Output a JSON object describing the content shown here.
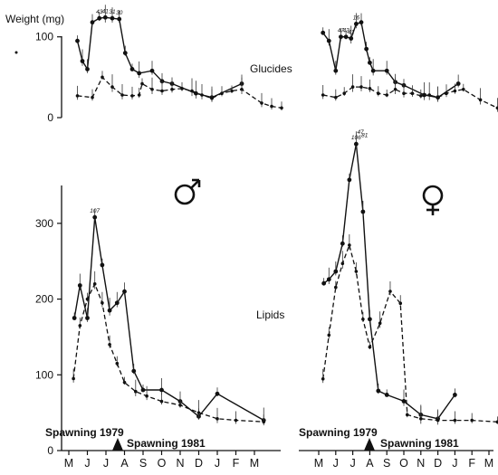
{
  "figure": {
    "ylabel": "Weight (mg)",
    "top_row_label": "Glucides",
    "bottom_row_label": "Lipids",
    "male_symbol": "♂",
    "female_symbol": "♀",
    "spawning_1979_label": "Spawning 1979",
    "spawning_1981_label": "Spawning 1981"
  },
  "chart_data": [
    {
      "type": "line",
      "panel": "male-glucides",
      "months": [
        "M",
        "J",
        "J",
        "A",
        "S",
        "O",
        "N",
        "D",
        "J",
        "F",
        "M"
      ],
      "ylim": [
        0,
        140
      ],
      "yticks": [
        0,
        100
      ],
      "series": [
        {
          "style": "solid",
          "x": [
            0.25,
            0.5,
            0.75,
            1.0,
            1.35,
            1.65,
            2.0,
            2.35,
            2.65,
            3.0,
            3.35,
            4.0,
            4.5,
            5.0,
            6.2,
            7.0,
            8.5
          ],
          "y": [
            95,
            70,
            60,
            118,
            123,
            124,
            123,
            122,
            80,
            60,
            55,
            58,
            45,
            42,
            30,
            25,
            42
          ]
        },
        {
          "style": "dashed",
          "x": [
            0.25,
            1.0,
            1.5,
            2.0,
            2.5,
            3.0,
            3.35,
            3.5,
            4.0,
            4.5,
            5.0,
            5.5,
            6.0,
            6.5,
            7.0,
            7.5,
            8.0,
            8.5,
            9.5,
            10.0,
            10.5
          ],
          "y": [
            27,
            25,
            50,
            38,
            28,
            27,
            28,
            42,
            35,
            33,
            35,
            36,
            33,
            28,
            24,
            30,
            33,
            35,
            18,
            14,
            12
          ]
        }
      ],
      "point_labels": [
        {
          "x": 1.35,
          "y": 123,
          "text": "43"
        },
        {
          "x": 1.65,
          "y": 124,
          "text": "41"
        },
        {
          "x": 2.0,
          "y": 123,
          "text": "31"
        },
        {
          "x": 2.35,
          "y": 122,
          "text": "30"
        }
      ]
    },
    {
      "type": "line",
      "panel": "female-glucides",
      "months": [
        "M",
        "J",
        "J",
        "A",
        "S",
        "O",
        "N",
        "D",
        "J",
        "F",
        "M"
      ],
      "ylim": [
        0,
        140
      ],
      "yticks": [],
      "series": [
        {
          "style": "solid",
          "x": [
            0.25,
            0.6,
            1.0,
            1.3,
            1.6,
            1.9,
            2.2,
            2.5,
            2.8,
            3.0,
            3.2,
            4.0,
            4.5,
            5.0,
            6.2,
            7.0,
            8.2
          ],
          "y": [
            105,
            95,
            58,
            100,
            100,
            98,
            116,
            118,
            85,
            68,
            58,
            58,
            44,
            40,
            28,
            25,
            42
          ]
        },
        {
          "style": "dashed",
          "x": [
            0.25,
            1.0,
            1.5,
            2.0,
            2.5,
            3.0,
            3.5,
            4.0,
            4.5,
            5.0,
            5.5,
            6.0,
            6.5,
            7.0,
            7.5,
            8.0,
            8.5,
            9.5,
            10.5
          ],
          "y": [
            28,
            25,
            30,
            38,
            38,
            36,
            30,
            28,
            35,
            30,
            30,
            27,
            28,
            25,
            30,
            33,
            35,
            22,
            12
          ]
        }
      ],
      "point_labels": [
        {
          "x": 1.3,
          "y": 100,
          "text": "47"
        },
        {
          "x": 1.6,
          "y": 100,
          "text": "43"
        },
        {
          "x": 1.9,
          "y": 98,
          "text": "41"
        },
        {
          "x": 2.2,
          "y": 116,
          "text": "16"
        }
      ]
    },
    {
      "type": "line",
      "panel": "male-lipids",
      "months": [
        "M",
        "J",
        "J",
        "A",
        "S",
        "O",
        "N",
        "D",
        "J",
        "F",
        "M"
      ],
      "ylim": [
        0,
        350
      ],
      "yticks": [
        0,
        100,
        200,
        300
      ],
      "series": [
        {
          "style": "solid",
          "x": [
            0.3,
            0.6,
            1.0,
            1.4,
            1.8,
            2.2,
            2.6,
            3.0,
            3.5,
            4.0,
            5.0,
            6.0,
            7.0,
            8.0,
            10.5
          ],
          "y": [
            175,
            218,
            175,
            308,
            245,
            185,
            195,
            210,
            105,
            80,
            80,
            65,
            45,
            75,
            40
          ]
        },
        {
          "style": "dashed",
          "x": [
            0.25,
            0.6,
            1.0,
            1.4,
            1.8,
            2.2,
            2.6,
            3.0,
            3.6,
            4.2,
            5.0,
            6.0,
            7.0,
            8.0,
            9.0,
            10.5
          ],
          "y": [
            95,
            165,
            200,
            220,
            195,
            140,
            115,
            90,
            78,
            72,
            65,
            60,
            50,
            42,
            40,
            38
          ]
        }
      ],
      "point_labels": [
        {
          "x": 1.4,
          "y": 308,
          "text": "107"
        }
      ]
    },
    {
      "type": "line",
      "panel": "female-lipids",
      "months": [
        "M",
        "J",
        "J",
        "A",
        "S",
        "O",
        "N",
        "D",
        "J",
        "F",
        "M"
      ],
      "ylim": [
        0,
        350
      ],
      "yticks": [],
      "series": [
        {
          "style": "solid",
          "x": [
            0.3,
            0.6,
            1.0,
            1.4,
            1.8,
            2.2,
            2.6,
            3.0,
            3.5,
            4.0,
            5.0,
            6.0,
            7.0,
            8.0
          ],
          "y": [
            210,
            215,
            225,
            260,
            340,
            385,
            300,
            165,
            75,
            70,
            62,
            45,
            40,
            70
          ]
        },
        {
          "style": "dashed",
          "x": [
            0.25,
            0.6,
            1.0,
            1.4,
            1.8,
            2.2,
            2.6,
            3.0,
            3.6,
            4.2,
            4.8,
            5.2,
            6.0,
            7.0,
            8.0,
            9.0,
            10.5
          ],
          "y": [
            90,
            145,
            205,
            235,
            258,
            225,
            165,
            130,
            160,
            200,
            185,
            45,
            40,
            38,
            38,
            38,
            36
          ]
        }
      ],
      "point_labels": [
        {
          "x": 2.2,
          "y": 385,
          "text": "106"
        },
        {
          "x": 2.45,
          "y": 392,
          "text": "47"
        },
        {
          "x": 2.7,
          "y": 388,
          "text": "81"
        }
      ]
    }
  ]
}
